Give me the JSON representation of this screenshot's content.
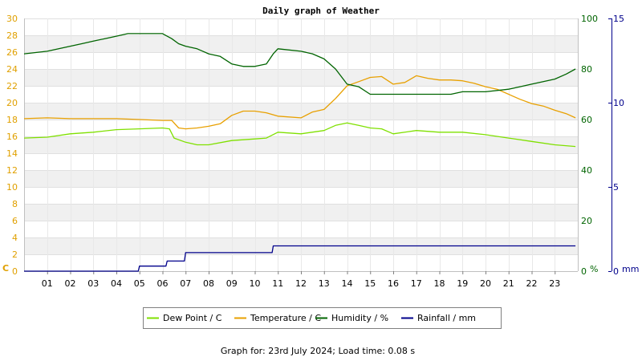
{
  "chart_data": {
    "type": "line",
    "title": "Daily graph of Weather",
    "footer": "Graph for: 23rd July 2024; Load time: 0.08 s",
    "x_tick_labels": [
      "01",
      "02",
      "03",
      "04",
      "05",
      "06",
      "07",
      "08",
      "09",
      "10",
      "11",
      "12",
      "13",
      "14",
      "15",
      "16",
      "17",
      "18",
      "19",
      "20",
      "21",
      "22",
      "23"
    ],
    "xlim": [
      0,
      24
    ],
    "grid": true,
    "legend_position": "bottom-center",
    "axes": {
      "left": {
        "unit": "C",
        "ylim": [
          0,
          30
        ],
        "ticks": [
          "0",
          "2",
          "4",
          "6",
          "8",
          "10",
          "12",
          "14",
          "16",
          "18",
          "20",
          "22",
          "24",
          "26",
          "28",
          "30"
        ],
        "color": "#e0a000"
      },
      "right1": {
        "unit": "%",
        "ylim": [
          0,
          100
        ],
        "ticks": [
          "0",
          "20",
          "40",
          "60",
          "80",
          "100"
        ],
        "color": "#006400"
      },
      "right2": {
        "unit": "mm",
        "ylim": [
          0,
          15
        ],
        "ticks": [
          "0",
          "5",
          "10",
          "15"
        ],
        "color": "#00008b"
      }
    },
    "series": [
      {
        "name": "Dew Point / C",
        "axis": "left",
        "color": "#7fe000",
        "x": [
          0,
          1,
          2,
          3,
          4,
          5,
          6,
          6.3,
          6.5,
          7,
          7.5,
          8,
          9,
          10,
          10.5,
          11,
          12,
          13,
          13.5,
          14,
          14.5,
          15,
          15.5,
          16,
          17,
          18,
          19,
          20,
          21,
          22,
          23,
          23.9
        ],
        "values": [
          15.8,
          15.9,
          16.3,
          16.5,
          16.8,
          16.9,
          17.0,
          16.9,
          15.8,
          15.3,
          15.0,
          15.0,
          15.5,
          15.7,
          15.8,
          16.5,
          16.3,
          16.7,
          17.3,
          17.6,
          17.3,
          17.0,
          16.9,
          16.3,
          16.7,
          16.5,
          16.5,
          16.2,
          15.8,
          15.4,
          15.0,
          14.8
        ]
      },
      {
        "name": "Temperature / C",
        "axis": "left",
        "color": "#e8a000",
        "x": [
          0,
          1,
          2,
          3,
          4,
          5,
          6,
          6.4,
          6.7,
          7,
          7.5,
          8,
          8.5,
          9,
          9.5,
          10,
          10.5,
          11,
          12,
          12.5,
          13,
          13.5,
          14,
          14.5,
          15,
          15.5,
          16,
          16.5,
          17,
          17.5,
          18,
          18.5,
          19,
          19.5,
          20,
          20.5,
          21,
          21.5,
          22,
          22.5,
          23,
          23.5,
          23.9
        ],
        "values": [
          18.1,
          18.2,
          18.1,
          18.1,
          18.1,
          18.0,
          17.9,
          17.9,
          17.0,
          16.9,
          17.0,
          17.2,
          17.5,
          18.5,
          19.0,
          19.0,
          18.8,
          18.4,
          18.2,
          18.9,
          19.2,
          20.5,
          22.0,
          22.5,
          23.0,
          23.1,
          22.2,
          22.4,
          23.2,
          22.9,
          22.7,
          22.7,
          22.6,
          22.3,
          21.9,
          21.6,
          21.0,
          20.4,
          19.9,
          19.6,
          19.1,
          18.7,
          18.2
        ]
      },
      {
        "name": "Humidity / %",
        "axis": "right1",
        "color": "#006400",
        "x": [
          0,
          1,
          1.5,
          2,
          2.5,
          3,
          3.5,
          4,
          4.5,
          5,
          5.5,
          6,
          6.4,
          6.7,
          7,
          7.5,
          8,
          8.5,
          9,
          9.5,
          10,
          10.5,
          10.8,
          11,
          12,
          12.5,
          13,
          13.5,
          14,
          14.5,
          15,
          16,
          17,
          18,
          18.5,
          19,
          19.5,
          20,
          21,
          21.5,
          22,
          22.5,
          23,
          23.5,
          23.9
        ],
        "values": [
          86,
          87,
          88,
          89,
          90,
          91,
          92,
          93,
          94,
          94,
          94,
          94,
          92,
          90,
          89,
          88,
          86,
          85,
          82,
          81,
          81,
          82,
          86,
          88,
          87,
          86,
          84,
          80,
          74,
          73,
          70,
          70,
          70,
          70,
          70,
          71,
          71,
          71,
          72,
          73,
          74,
          75,
          76,
          78,
          80
        ]
      },
      {
        "name": "Rainfall / mm",
        "axis": "right2",
        "color": "#00008b",
        "x": [
          0,
          4.95,
          5,
          6.15,
          6.2,
          6.95,
          7,
          10.75,
          10.8,
          23.9
        ],
        "values": [
          0,
          0,
          0.3,
          0.3,
          0.6,
          0.6,
          1.1,
          1.1,
          1.5,
          1.5
        ]
      }
    ]
  }
}
